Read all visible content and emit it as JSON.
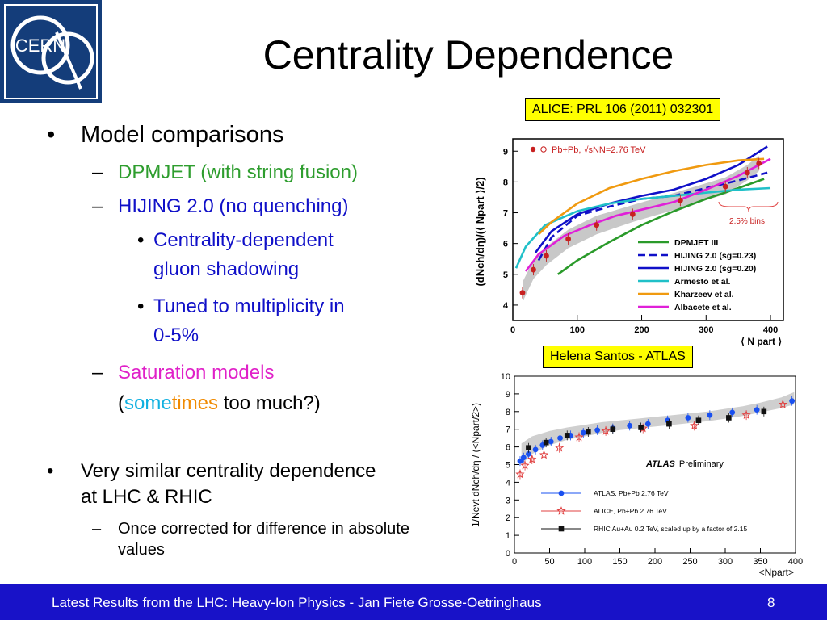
{
  "slide": {
    "title": "Centrality Dependence",
    "logo_text": "CERN",
    "bullets": {
      "b1": "Model comparisons",
      "b1_1": "DPMJET (with string fusion)",
      "b1_2": "HIJING 2.0 (no quenching)",
      "b1_2_1a": "Centrality-dependent",
      "b1_2_1b": "gluon shadowing",
      "b1_2_2a": "Tuned to multiplicity in",
      "b1_2_2b": "0-5%",
      "b1_3": "Saturation models",
      "b1_3b_open": "(",
      "b1_3b_some": "some",
      "b1_3b_times": "times",
      "b1_3b_rest": " too much?)",
      "b2a": "Very similar centrality dependence",
      "b2b": "at LHC & RHIC",
      "b2_1a": "Once corrected for difference in absolute",
      "b2_1b": "values"
    },
    "dash": "–",
    "dot": "•",
    "tag_alice": "ALICE: PRL 106 (2011) 032301",
    "tag_atlas": "Helena Santos - ATLAS",
    "footer": "Latest Results from the LHC: Heavy-Ion Physics - Jan Fiete Grosse-Oetringhaus",
    "page": "8",
    "colors": {
      "footer_bg": "#1812c8",
      "logo_bg": "#143d7a",
      "tag_bg": "#ffff00"
    }
  },
  "chart_data": [
    {
      "type": "line",
      "xlabel": "⟨ N part ⟩",
      "ylabel": "(dNch/dη)/(⟨ Npart ⟩/2)",
      "xlim": [
        0,
        420
      ],
      "ylim": [
        3.5,
        9.4
      ],
      "xticks": [
        "0",
        "100",
        "200",
        "300",
        "400"
      ],
      "yticks": [
        "4",
        "5",
        "6",
        "7",
        "8",
        "9"
      ],
      "legend_title": "Pb+Pb, √sNN=2.76 TeV",
      "annotation": "2.5% bins",
      "data_points": {
        "name": "Pb+Pb, √sNN=2.76 TeV",
        "x": [
          15,
          32,
          52,
          86,
          130,
          186,
          260,
          330,
          364,
          382
        ],
        "y": [
          4.4,
          5.15,
          5.6,
          6.15,
          6.6,
          6.95,
          7.4,
          7.85,
          8.3,
          8.6
        ]
      },
      "band": {
        "x": [
          15,
          32,
          52,
          86,
          130,
          186,
          260,
          330,
          364,
          382
        ],
        "low": [
          4.1,
          4.85,
          5.3,
          5.85,
          6.3,
          6.7,
          7.15,
          7.6,
          8.05,
          8.35
        ],
        "high": [
          4.75,
          5.45,
          5.9,
          6.45,
          6.9,
          7.25,
          7.7,
          8.15,
          8.55,
          8.85
        ]
      },
      "series": [
        {
          "name": "DPMJET III",
          "color": "#2a9a2a",
          "dash": "solid",
          "x": [
            70,
            100,
            150,
            200,
            250,
            300,
            350,
            390
          ],
          "y": [
            5.0,
            5.45,
            6.05,
            6.6,
            7.05,
            7.45,
            7.8,
            8.1
          ]
        },
        {
          "name": "HIJING 2.0 (sg=0.23)",
          "color": "#1010c8",
          "dash": "dashed",
          "x": [
            40,
            60,
            100,
            150,
            200,
            250,
            300,
            350,
            395
          ],
          "y": [
            5.45,
            6.2,
            6.9,
            7.2,
            7.45,
            7.55,
            7.8,
            8.05,
            8.3
          ]
        },
        {
          "name": "HIJING 2.0 (sg=0.20)",
          "color": "#1010c8",
          "dash": "solid",
          "x": [
            35,
            60,
            100,
            150,
            200,
            250,
            300,
            350,
            395
          ],
          "y": [
            5.7,
            6.4,
            6.95,
            7.3,
            7.55,
            7.75,
            8.1,
            8.55,
            9.15
          ]
        },
        {
          "name": "Armesto et al.",
          "color": "#20c0c8",
          "dash": "solid",
          "x": [
            5,
            20,
            50,
            100,
            150,
            200,
            250,
            300,
            350,
            400
          ],
          "y": [
            5.2,
            5.9,
            6.6,
            7.05,
            7.3,
            7.45,
            7.55,
            7.65,
            7.75,
            7.8
          ]
        },
        {
          "name": "Kharzeev et al.",
          "color": "#f09a10",
          "dash": "solid",
          "x": [
            40,
            60,
            100,
            150,
            200,
            250,
            300,
            350,
            390
          ],
          "y": [
            6.3,
            6.7,
            7.3,
            7.8,
            8.1,
            8.35,
            8.55,
            8.7,
            8.75
          ]
        },
        {
          "name": "Albacete et al.",
          "color": "#e020d8",
          "dash": "solid",
          "x": [
            20,
            40,
            80,
            120,
            160,
            200,
            250,
            300,
            350,
            400
          ],
          "y": [
            5.1,
            5.65,
            6.25,
            6.6,
            6.9,
            7.1,
            7.35,
            7.75,
            8.2,
            8.75
          ]
        }
      ]
    },
    {
      "type": "scatter",
      "xlabel": "<Npart>",
      "ylabel": "1/Nevt dNch/dη / (<Npart/2>)",
      "xlim": [
        0,
        400
      ],
      "ylim": [
        0,
        10
      ],
      "xticks": [
        "0",
        "50",
        "100",
        "150",
        "200",
        "250",
        "300",
        "350",
        "400"
      ],
      "yticks": [
        "0",
        "1",
        "2",
        "3",
        "4",
        "5",
        "6",
        "7",
        "8",
        "9",
        "10"
      ],
      "label_bold": "ATLAS",
      "label_rest": "Preliminary",
      "band": {
        "x": [
          10,
          25,
          50,
          75,
          100,
          125,
          150,
          175,
          200,
          225,
          250,
          275,
          300,
          325,
          350,
          380,
          398
        ],
        "low": [
          5.0,
          5.6,
          6.1,
          6.4,
          6.6,
          6.8,
          6.95,
          7.05,
          7.15,
          7.25,
          7.35,
          7.45,
          7.6,
          7.75,
          7.95,
          8.2,
          8.4
        ],
        "high": [
          6.2,
          6.6,
          6.9,
          7.1,
          7.25,
          7.4,
          7.5,
          7.6,
          7.7,
          7.8,
          7.9,
          8.0,
          8.15,
          8.3,
          8.5,
          8.8,
          9.1
        ]
      },
      "series": [
        {
          "name": "ATLAS, Pb+Pb 2.76 TeV",
          "color": "#1a50f0",
          "marker": "circle",
          "x": [
            8,
            13,
            20,
            30,
            40,
            52,
            65,
            80,
            98,
            118,
            140,
            164,
            190,
            218,
            247,
            278,
            310,
            345,
            395
          ],
          "y": [
            5.2,
            5.4,
            5.6,
            5.85,
            6.1,
            6.3,
            6.5,
            6.65,
            6.8,
            6.95,
            7.05,
            7.2,
            7.3,
            7.5,
            7.65,
            7.8,
            7.95,
            8.1,
            8.6
          ]
        },
        {
          "name": "ALICE, Pb+Pb 2.76 TeV",
          "color": "#e04040",
          "marker": "star",
          "x": [
            8,
            15,
            25,
            42,
            64,
            92,
            130,
            183,
            256,
            330,
            382
          ],
          "y": [
            4.45,
            4.95,
            5.3,
            5.55,
            5.95,
            6.55,
            6.9,
            7.05,
            7.2,
            7.8,
            8.4
          ]
        },
        {
          "name": "RHIC Au+Au 0.2 TeV, scaled up by a factor of 2.15",
          "color": "#111111",
          "marker": "square",
          "x": [
            20,
            45,
            75,
            105,
            140,
            180,
            220,
            262,
            305,
            355
          ],
          "y": [
            5.95,
            6.25,
            6.65,
            6.85,
            7.0,
            7.1,
            7.3,
            7.5,
            7.65,
            8.0
          ]
        }
      ]
    }
  ]
}
